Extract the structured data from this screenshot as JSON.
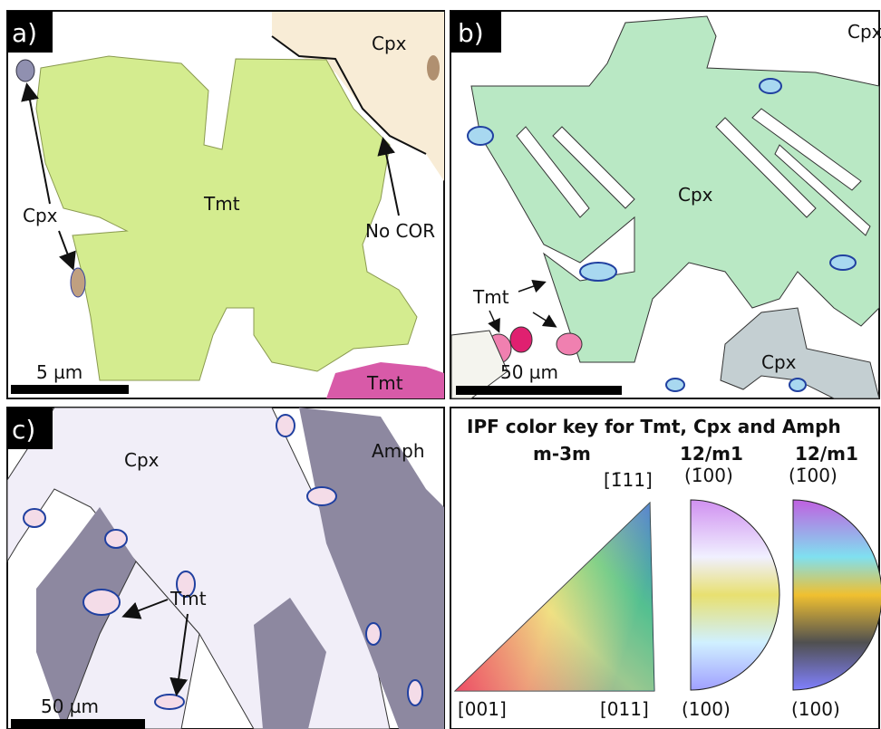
{
  "panels": [
    {
      "label": "a)",
      "labels": {
        "cpx_top": "Cpx",
        "cpx_left": "Cpx",
        "tmt_center": "Tmt",
        "no_cor": "No COR",
        "tmt_bottom": "Tmt"
      },
      "scale_bar": "5 µm"
    },
    {
      "label": "b)",
      "labels": {
        "cpx_corner": "Cpx",
        "cpx_center": "Cpx",
        "tmt": "Tmt",
        "cpx_bottom": "Cpx"
      },
      "scale_bar": "50 µm"
    },
    {
      "label": "c)",
      "labels": {
        "cpx": "Cpx",
        "amph": "Amph",
        "tmt": "Tmt"
      },
      "scale_bar": "50 µm"
    }
  ],
  "color_key": {
    "title": "IPF color key for Tmt, Cpx and Amph",
    "groups": [
      {
        "name": "m-3m",
        "top": "[1̄11]",
        "bottom_left": "[001]",
        "bottom_right": "[011]"
      },
      {
        "name": "12/m1",
        "top": "(1̄00)",
        "bottom": "(100)"
      },
      {
        "name": "12/m1",
        "top": "(1̄00)",
        "bottom": "(100)"
      }
    ]
  }
}
